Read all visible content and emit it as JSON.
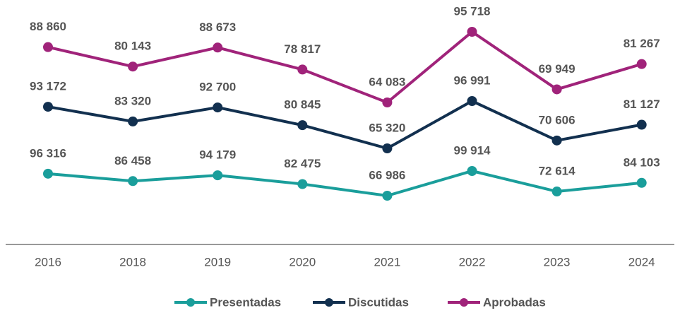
{
  "chart_data": {
    "type": "line",
    "categories": [
      "2016",
      "2018",
      "2019",
      "2020",
      "2021",
      "2022",
      "2023",
      "2024"
    ],
    "series": [
      {
        "name": "Presentadas",
        "color": "#1a9e9b",
        "values": [
          96316,
          86458,
          94179,
          82475,
          66986,
          99914,
          72614,
          84103
        ],
        "value_labels": [
          "96 316",
          "86 458",
          "94 179",
          "82 475",
          "66 986",
          "99 914",
          "72 614",
          "84 103"
        ]
      },
      {
        "name": "Discutidas",
        "color": "#12304f",
        "values": [
          93172,
          83320,
          92700,
          80845,
          65320,
          96991,
          70606,
          81127
        ],
        "value_labels": [
          "93 172",
          "83 320",
          "92 700",
          "80 845",
          "65 320",
          "96 991",
          "70 606",
          "81 127"
        ]
      },
      {
        "name": "Aprobadas",
        "color": "#a0237a",
        "values": [
          88860,
          80143,
          88673,
          78817,
          64083,
          95718,
          69949,
          81267
        ],
        "value_labels": [
          "88 860",
          "80 143",
          "88 673",
          "78 817",
          "64 083",
          "95 718",
          "69 949",
          "81 267"
        ]
      }
    ],
    "legend": "bottom"
  }
}
